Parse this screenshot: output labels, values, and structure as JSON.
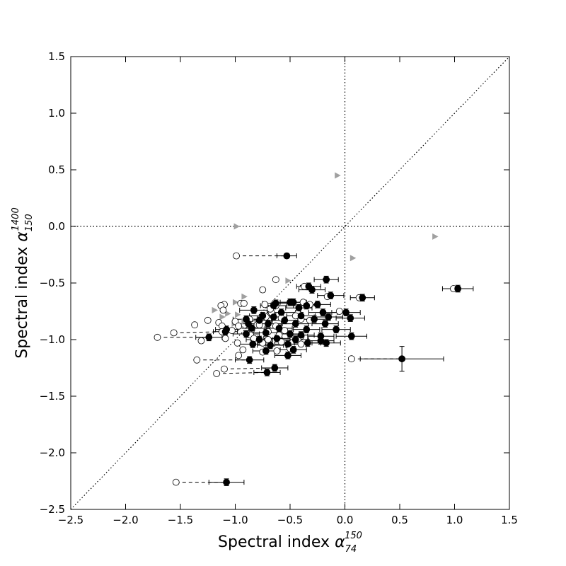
{
  "chart_data": {
    "type": "scatter",
    "xlabel": "Spectral index",
    "xlabel_sym": "α",
    "xlabel_sub": "74",
    "xlabel_sup": "150",
    "ylabel": "Spectral index",
    "ylabel_sym": "α",
    "ylabel_sub": "150",
    "ylabel_sup": "1400",
    "xlim": [
      -2.5,
      1.5
    ],
    "ylim": [
      -2.5,
      1.5
    ],
    "xticks": [
      -2.5,
      -2.0,
      -1.5,
      -1.0,
      -0.5,
      0.0,
      0.5,
      1.0,
      1.5
    ],
    "yticks": [
      -2.5,
      -2.0,
      -1.5,
      -1.0,
      -0.5,
      0.0,
      0.5,
      1.0,
      1.5
    ],
    "xtick_labels": [
      "−2.5",
      "−2.0",
      "−1.5",
      "−1.0",
      "−0.5",
      "0.0",
      "0.5",
      "1.0",
      "1.5"
    ],
    "ytick_labels": [
      "−2.5",
      "−2.0",
      "−1.5",
      "−1.0",
      "−0.5",
      "0.0",
      "0.5",
      "1.0",
      "1.5"
    ],
    "grid": false,
    "reference_lines": [
      "x = 0 (dotted)",
      "y = 0 (dotted)",
      "y = x (dotted)"
    ],
    "colors": {
      "filled": "#000000",
      "open_fill": "#ffffff",
      "open_stroke": "#000000",
      "triangle": "#a0a0a0"
    },
    "series": [
      {
        "marker": "filled-circle-errorbars",
        "points": [
          [
            -0.53,
            -0.26,
            0.09,
            0.02
          ],
          [
            -1.08,
            -2.26,
            0.16,
            0.03
          ],
          [
            -0.17,
            -0.47,
            0.11,
            0.03
          ],
          [
            -0.33,
            -0.53,
            0.11,
            0.03
          ],
          [
            -0.3,
            -0.56,
            0.12,
            0.03
          ],
          [
            -0.13,
            -0.61,
            0.12,
            0.03
          ],
          [
            0.16,
            -0.63,
            0.11,
            0.03
          ],
          [
            1.03,
            -0.55,
            0.14,
            0.03
          ],
          [
            -0.5,
            -0.67,
            0.12,
            0.03
          ],
          [
            -0.47,
            -0.67,
            0.12,
            0.03
          ],
          [
            -0.63,
            -0.68,
            0.12,
            0.03
          ],
          [
            -0.65,
            -0.7,
            0.12,
            0.03
          ],
          [
            -0.35,
            -0.7,
            0.12,
            0.03
          ],
          [
            -0.25,
            -0.69,
            0.12,
            0.03
          ],
          [
            -0.42,
            -0.72,
            0.12,
            0.03
          ],
          [
            -0.83,
            -0.74,
            0.13,
            0.03
          ],
          [
            -0.58,
            -0.76,
            0.13,
            0.03
          ],
          [
            -0.2,
            -0.76,
            0.13,
            0.03
          ],
          [
            0.01,
            -0.76,
            0.13,
            0.03
          ],
          [
            -0.75,
            -0.79,
            0.12,
            0.03
          ],
          [
            -0.4,
            -0.79,
            0.13,
            0.03
          ],
          [
            -0.65,
            -0.8,
            0.12,
            0.03
          ],
          [
            -0.15,
            -0.8,
            0.13,
            0.03
          ],
          [
            0.05,
            -0.81,
            0.13,
            0.03
          ],
          [
            -0.9,
            -0.82,
            0.12,
            0.03
          ],
          [
            -0.78,
            -0.83,
            0.12,
            0.03
          ],
          [
            -0.55,
            -0.83,
            0.12,
            0.03
          ],
          [
            -0.28,
            -0.82,
            0.12,
            0.03
          ],
          [
            -0.88,
            -0.86,
            0.12,
            0.03
          ],
          [
            -0.7,
            -0.86,
            0.12,
            0.03
          ],
          [
            -0.45,
            -0.86,
            0.12,
            0.03
          ],
          [
            -0.18,
            -0.86,
            0.12,
            0.03
          ],
          [
            -1.08,
            -0.91,
            0.1,
            0.03
          ],
          [
            -0.85,
            -0.9,
            0.12,
            0.03
          ],
          [
            -0.6,
            -0.9,
            0.12,
            0.03
          ],
          [
            -0.35,
            -0.91,
            0.12,
            0.03
          ],
          [
            -0.08,
            -0.91,
            0.13,
            0.03
          ],
          [
            -1.24,
            -0.98,
            0.12,
            0.03
          ],
          [
            -0.9,
            -0.95,
            0.12,
            0.03
          ],
          [
            -0.72,
            -0.94,
            0.12,
            0.03
          ],
          [
            -0.5,
            -0.95,
            0.12,
            0.03
          ],
          [
            -0.4,
            -0.96,
            0.12,
            0.03
          ],
          [
            -0.22,
            -0.97,
            0.12,
            0.03
          ],
          [
            0.06,
            -0.97,
            0.14,
            0.03
          ],
          [
            -1.09,
            -0.93,
            0.11,
            0.03
          ],
          [
            -0.78,
            -1.0,
            0.12,
            0.03
          ],
          [
            -0.62,
            -0.99,
            0.12,
            0.03
          ],
          [
            -0.45,
            -1.0,
            0.12,
            0.03
          ],
          [
            -0.22,
            -1.01,
            0.12,
            0.03
          ],
          [
            -0.17,
            -1.03,
            0.13,
            0.03
          ],
          [
            -0.84,
            -1.04,
            0.12,
            0.03
          ],
          [
            -0.68,
            -1.05,
            0.12,
            0.03
          ],
          [
            -0.52,
            -1.04,
            0.12,
            0.03
          ],
          [
            -0.34,
            -1.03,
            0.12,
            0.03
          ],
          [
            -0.72,
            -1.1,
            0.12,
            0.03
          ],
          [
            -0.47,
            -1.09,
            0.12,
            0.03
          ],
          [
            -0.52,
            -1.14,
            0.12,
            0.03
          ],
          [
            -0.87,
            -1.18,
            0.13,
            0.03
          ],
          [
            -0.64,
            -1.25,
            0.12,
            0.03
          ],
          [
            -0.71,
            -1.29,
            0.12,
            0.03
          ],
          [
            0.52,
            -1.17,
            0.38,
            0.11
          ]
        ]
      },
      {
        "marker": "open-circle-dashed-link",
        "links": [
          [
            -0.99,
            -0.26,
            -0.53,
            -0.26
          ],
          [
            -1.54,
            -2.26,
            -1.08,
            -2.26
          ],
          [
            -0.41,
            -0.52,
            -0.33,
            -0.53
          ],
          [
            -1.35,
            -1.18,
            -0.87,
            -1.18
          ],
          [
            -1.1,
            -1.26,
            -0.64,
            -1.25
          ],
          [
            -1.17,
            -1.3,
            -0.71,
            -1.29
          ],
          [
            -1.56,
            -0.94,
            -1.09,
            -0.93
          ],
          [
            -1.71,
            -0.98,
            -1.24,
            -0.98
          ],
          [
            0.06,
            -1.17,
            0.52,
            -1.17
          ],
          [
            0.99,
            -0.55,
            1.03,
            -0.55
          ],
          [
            0.13,
            -0.63,
            0.16,
            -0.63
          ]
        ],
        "points": [
          [
            -0.99,
            -0.26
          ],
          [
            -1.54,
            -2.26
          ],
          [
            -0.63,
            -0.47
          ],
          [
            -0.75,
            -0.56
          ],
          [
            -0.37,
            -0.53
          ],
          [
            -0.16,
            -0.62
          ],
          [
            0.13,
            -0.63
          ],
          [
            0.99,
            -0.55
          ],
          [
            -1.1,
            -0.69
          ],
          [
            -1.13,
            -0.7
          ],
          [
            -0.95,
            -0.68
          ],
          [
            -0.92,
            -0.68
          ],
          [
            -0.73,
            -0.69
          ],
          [
            -0.63,
            -0.7
          ],
          [
            -0.38,
            -0.67
          ],
          [
            -0.32,
            -0.69
          ],
          [
            -1.11,
            -0.74
          ],
          [
            -0.67,
            -0.76
          ],
          [
            -0.43,
            -0.77
          ],
          [
            -0.05,
            -0.75
          ],
          [
            -1.25,
            -0.83
          ],
          [
            -1.15,
            -0.85
          ],
          [
            -1.0,
            -0.84
          ],
          [
            -0.87,
            -0.82
          ],
          [
            -0.72,
            -0.8
          ],
          [
            -0.58,
            -0.81
          ],
          [
            -0.45,
            -0.79
          ],
          [
            -0.32,
            -0.83
          ],
          [
            -0.4,
            -0.82
          ],
          [
            -1.37,
            -0.87
          ],
          [
            -1.12,
            -0.88
          ],
          [
            -0.97,
            -0.88
          ],
          [
            -0.8,
            -0.87
          ],
          [
            -0.63,
            -0.88
          ],
          [
            -0.85,
            -0.91
          ],
          [
            -1.03,
            -0.92
          ],
          [
            -0.7,
            -0.93
          ],
          [
            -0.55,
            -0.92
          ],
          [
            -1.12,
            -0.93
          ],
          [
            -0.86,
            -0.96
          ],
          [
            -0.6,
            -0.96
          ],
          [
            -0.4,
            -0.97
          ],
          [
            -1.56,
            -0.94
          ],
          [
            -1.71,
            -0.98
          ],
          [
            -1.09,
            -0.99
          ],
          [
            -0.83,
            -0.99
          ],
          [
            -0.7,
            -1.0
          ],
          [
            -0.43,
            -1.0
          ],
          [
            -1.31,
            -1.01
          ],
          [
            -0.98,
            -1.03
          ],
          [
            -0.75,
            -1.03
          ],
          [
            -0.58,
            -1.02
          ],
          [
            -0.4,
            -1.04
          ],
          [
            -0.93,
            -1.09
          ],
          [
            -0.75,
            -1.11
          ],
          [
            -0.62,
            -1.1
          ],
          [
            -0.5,
            -1.08
          ],
          [
            -0.97,
            -1.14
          ],
          [
            -1.35,
            -1.18
          ],
          [
            -1.1,
            -1.26
          ],
          [
            -1.17,
            -1.3
          ],
          [
            0.06,
            -1.17
          ],
          [
            -0.68,
            -0.73
          ],
          [
            -0.78,
            -0.87
          ]
        ]
      },
      {
        "marker": "gray-right-triangle",
        "points": [
          [
            -0.07,
            0.45
          ],
          [
            -0.99,
            0.0
          ],
          [
            0.82,
            -0.09
          ],
          [
            0.07,
            -0.28
          ],
          [
            -0.52,
            -0.48
          ],
          [
            -0.92,
            -0.62
          ],
          [
            -1.0,
            -0.67
          ],
          [
            -1.19,
            -0.74
          ],
          [
            -1.07,
            -0.77
          ],
          [
            -1.12,
            -0.8
          ],
          [
            -0.98,
            -0.78
          ],
          [
            -0.92,
            -0.84
          ],
          [
            -1.01,
            -0.86
          ],
          [
            -0.86,
            -0.82
          ],
          [
            -0.95,
            -0.89
          ]
        ]
      }
    ]
  }
}
